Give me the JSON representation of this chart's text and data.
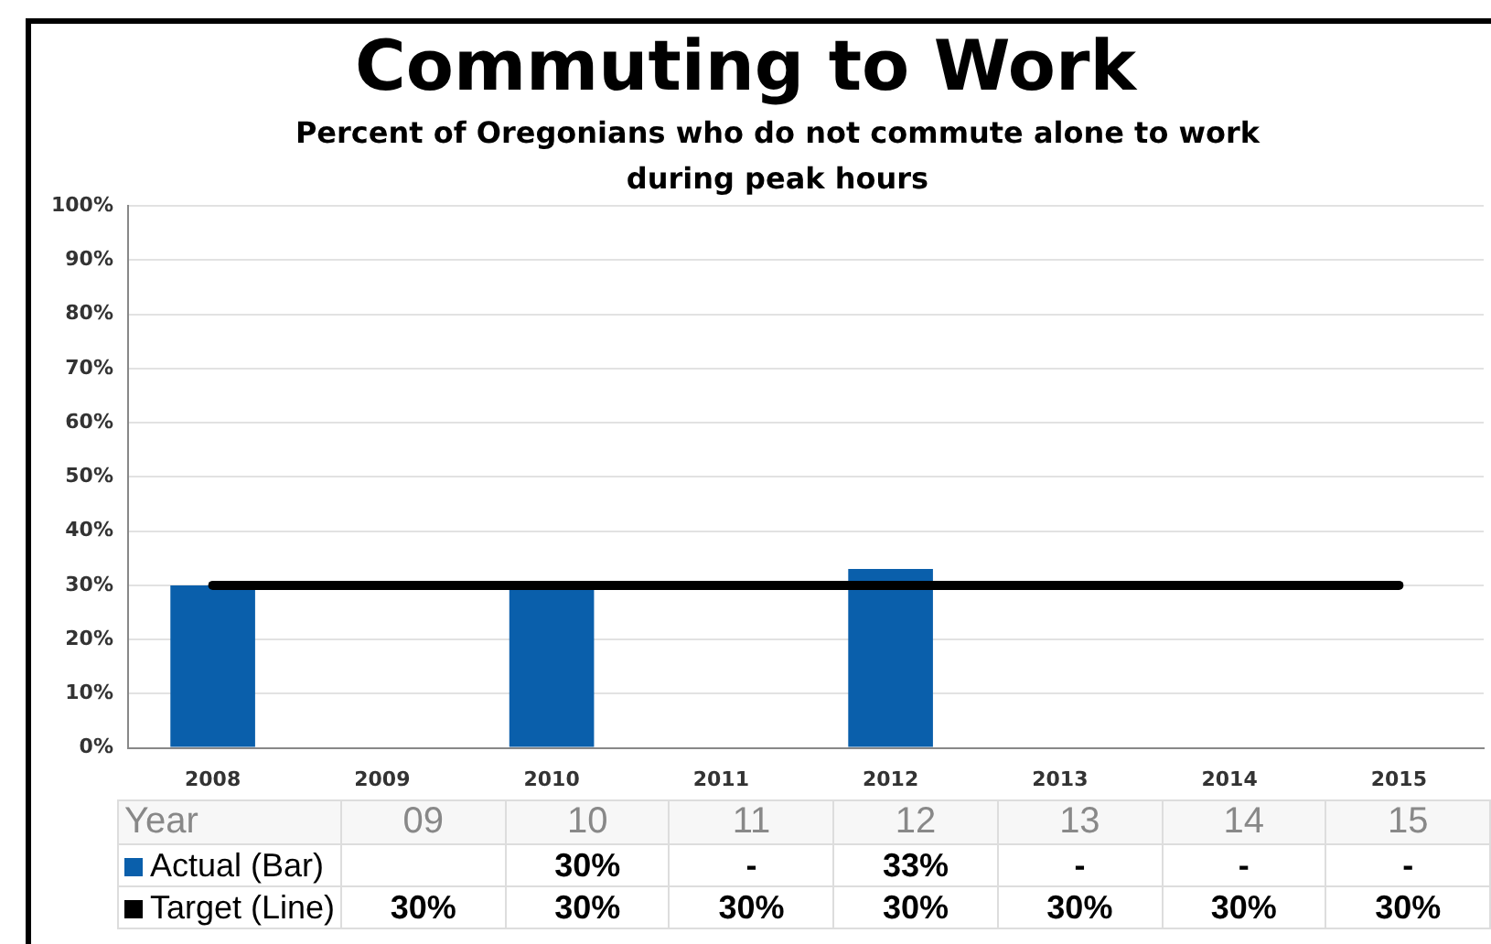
{
  "chart_data": {
    "type": "bar",
    "title": "Commuting to Work",
    "subtitle": "Percent of Oregonians who do not commute alone to work during peak hours",
    "categories": [
      "2008",
      "2009",
      "2010",
      "2011",
      "2012",
      "2013",
      "2014",
      "2015"
    ],
    "xlabel": "Year",
    "annotations": [
      "09",
      "10",
      "11",
      "12",
      "13",
      "14",
      "15"
    ],
    "series": [
      {
        "name": "Actual (Bar)",
        "color": "#0a5fab",
        "values": [
          30,
          null,
          30,
          null,
          33,
          null,
          null,
          null
        ],
        "value_labels": [
          null,
          null,
          "30%",
          "-",
          "33%",
          "-",
          "-",
          "-"
        ]
      },
      {
        "name": "Target (Line)",
        "type": "line",
        "color": "#000000",
        "values": [
          30,
          30,
          30,
          30,
          30,
          30,
          30,
          30
        ],
        "value_labels": [
          null,
          "30%",
          "30%",
          "30%",
          "30%",
          "30%",
          "30%",
          "30%"
        ]
      }
    ],
    "ylim": [
      0,
      100
    ],
    "yticks": [
      {
        "value": 0,
        "label": "0%"
      },
      {
        "value": 10,
        "label": "10%"
      },
      {
        "value": 20,
        "label": "20%"
      },
      {
        "value": 30,
        "label": "30%"
      },
      {
        "value": 40,
        "label": "40%"
      },
      {
        "value": 50,
        "label": "50%"
      },
      {
        "value": 60,
        "label": "60%"
      },
      {
        "value": 70,
        "label": "70%"
      },
      {
        "value": 80,
        "label": "80%"
      },
      {
        "value": 90,
        "label": "90%"
      },
      {
        "value": 100,
        "label": "100%"
      }
    ],
    "grid": "y",
    "legend": "bottom left",
    "marker": "none",
    "line_style": "solid"
  }
}
